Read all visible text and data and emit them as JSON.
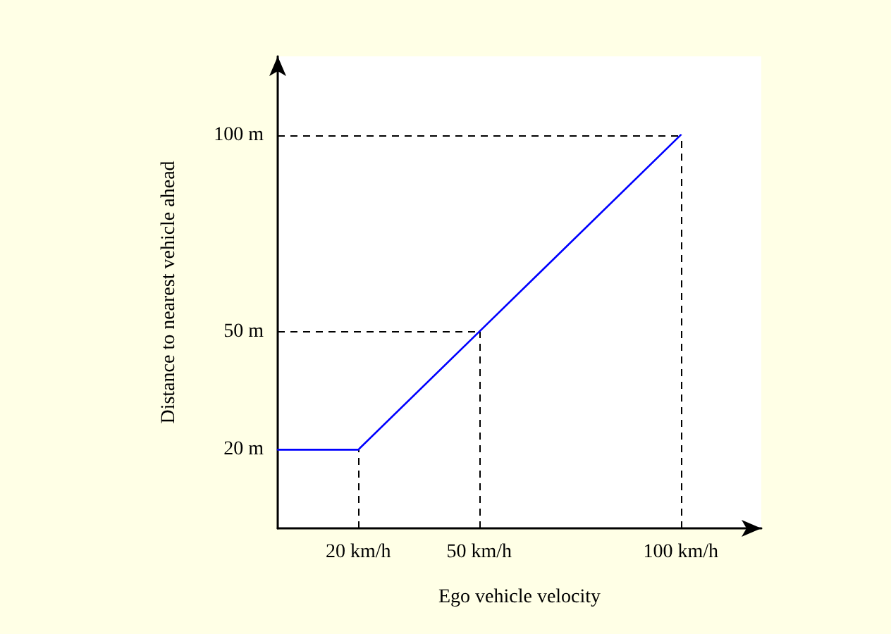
{
  "chart_data": {
    "type": "line",
    "xlabel": "Ego vehicle velocity",
    "ylabel": "Distance to nearest vehicle ahead",
    "x": [
      0,
      20,
      50,
      100
    ],
    "series": [
      {
        "color": "#0000ff",
        "values": [
          20,
          20,
          50,
          100
        ]
      }
    ],
    "xlim": [
      0,
      120
    ],
    "ylim": [
      0,
      120
    ],
    "xticks": [
      {
        "value": 20,
        "label": "20 km/h"
      },
      {
        "value": 50,
        "label": "50 km/h"
      },
      {
        "value": 100,
        "label": "100 km/h"
      }
    ],
    "yticks": [
      {
        "value": 20,
        "label": "20 m"
      },
      {
        "value": 50,
        "label": "50 m"
      },
      {
        "value": 100,
        "label": "100 m"
      }
    ],
    "ref_lines": [
      {
        "axis": "x",
        "value": 20,
        "color": "#000000",
        "line_style": "dashed"
      },
      {
        "axis": "x",
        "value": 50,
        "color": "#000000",
        "line_style": "dashed"
      },
      {
        "axis": "x",
        "value": 100,
        "color": "#000000",
        "line_style": "dashed"
      },
      {
        "axis": "y",
        "value": 50,
        "color": "#000000",
        "line_style": "dashed"
      },
      {
        "axis": "y",
        "value": 100,
        "color": "#000000",
        "line_style": "dashed"
      }
    ],
    "grid": false,
    "marker": "none",
    "line_style": "solid"
  }
}
